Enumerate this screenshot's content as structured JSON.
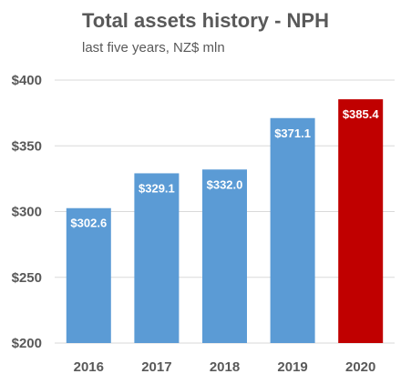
{
  "chart_data": {
    "type": "bar",
    "title": "Total assets history - NPH",
    "subtitle": "last five years, NZ$ mln",
    "xlabel": "",
    "ylabel": "",
    "categories": [
      "2016",
      "2017",
      "2018",
      "2019",
      "2020"
    ],
    "values": [
      302.6,
      329.1,
      332.0,
      371.1,
      385.4
    ],
    "data_labels": [
      "$302.6",
      "$329.1",
      "$332.0",
      "$371.1",
      "$385.4"
    ],
    "ylim": [
      200,
      400
    ],
    "y_ticks": [
      200,
      250,
      300,
      350,
      400
    ],
    "y_tick_labels": [
      "$200",
      "$250",
      "$300",
      "$350",
      "$400"
    ],
    "grid": true,
    "legend": "none",
    "colors": {
      "bar": "#5b9bd5",
      "highlight_bar": "#c00000",
      "grid": "#d9d9d9",
      "text": "#595959",
      "data_label": "#ffffff"
    },
    "highlight_category": "2020"
  }
}
